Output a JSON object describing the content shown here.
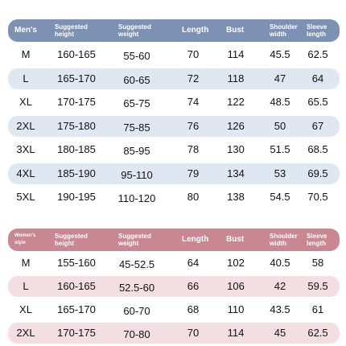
{
  "men": {
    "headers": [
      "Men's",
      "Suggested height",
      "Suggested weight",
      "Length",
      "Bust",
      "Shoulder width",
      "Sleeve length"
    ],
    "rows": [
      [
        "M",
        "160-165",
        "55-60",
        "70",
        "114",
        "45.5",
        "62.5"
      ],
      [
        "L",
        "165-170",
        "60-65",
        "72",
        "118",
        "47",
        "64"
      ],
      [
        "XL",
        "170-175",
        "65-75",
        "74",
        "122",
        "48.5",
        "65.5"
      ],
      [
        "2XL",
        "175-180",
        "75-85",
        "76",
        "126",
        "50",
        "67"
      ],
      [
        "3XL",
        "180-185",
        "85-95",
        "78",
        "130",
        "51.5",
        "68.5"
      ],
      [
        "4XL",
        "185-190",
        "95-110",
        "79",
        "134",
        "53",
        "69.5"
      ],
      [
        "5XL",
        "190-195",
        "110-120",
        "80",
        "138",
        "54.5",
        "70.5"
      ]
    ]
  },
  "women": {
    "headers": [
      "Women's style",
      "Suggested height",
      "Suggested weight",
      "Length",
      "Bust",
      "Shoulder width",
      "Sleeve length"
    ],
    "rows": [
      [
        "M",
        "155-160",
        "45-52.5",
        "64",
        "102",
        "40.5",
        "58"
      ],
      [
        "L",
        "160-165",
        "52.5-60",
        "66",
        "106",
        "42",
        "59.5"
      ],
      [
        "XL",
        "165-170",
        "60-70",
        "68",
        "110",
        "43.5",
        "61"
      ],
      [
        "2XL",
        "170-175",
        "70-80",
        "70",
        "114",
        "45",
        "62.5"
      ]
    ]
  }
}
